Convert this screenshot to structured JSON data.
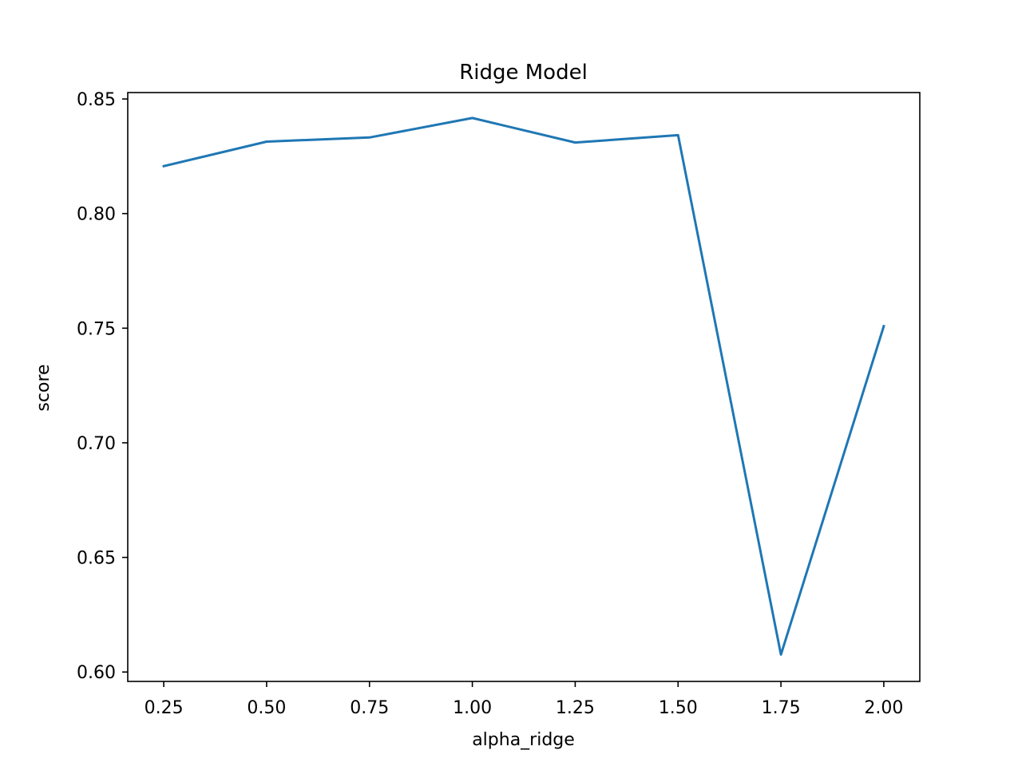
{
  "chart_data": {
    "type": "line",
    "title": "Ridge Model",
    "xlabel": "alpha_ridge",
    "ylabel": "score",
    "xlim": [
      0.1625,
      2.0875
    ],
    "ylim": [
      0.5959,
      0.8528
    ],
    "xticks": [
      "0.25",
      "0.50",
      "0.75",
      "1.00",
      "1.25",
      "1.50",
      "1.75",
      "2.00"
    ],
    "yticks": [
      "0.60",
      "0.65",
      "0.70",
      "0.75",
      "0.80",
      "0.85"
    ],
    "grid": false,
    "series": [
      {
        "color": "#1f77b4",
        "x": [
          0.25,
          0.5,
          0.75,
          1.0,
          1.25,
          1.5,
          1.75,
          2.0
        ],
        "y": [
          0.8207,
          0.8314,
          0.8332,
          0.8417,
          0.831,
          0.8342,
          0.6076,
          0.7509
        ]
      }
    ]
  }
}
